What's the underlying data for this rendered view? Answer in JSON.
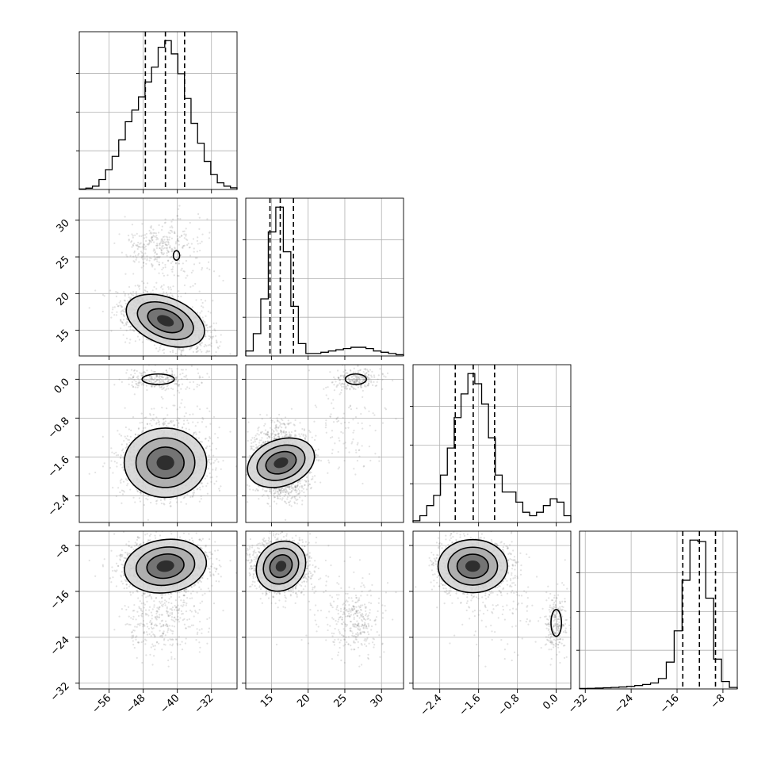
{
  "chart_data": {
    "type": "corner",
    "grid": true,
    "parameters": [
      {
        "index": 0,
        "range": [
          -63,
          -26
        ],
        "ticks": [
          -56,
          -48,
          -40,
          -32
        ],
        "tick_labels": [
          "−56",
          "−48",
          "−40",
          "−32"
        ],
        "quantiles": [
          -47.5,
          -42.8,
          -38.3
        ],
        "histogram": [
          0.3,
          0.8,
          2,
          6,
          12,
          20,
          30,
          41,
          48,
          56,
          65,
          74,
          86,
          90,
          82,
          70,
          55,
          40,
          28,
          17,
          9,
          4,
          2,
          1
        ]
      },
      {
        "index": 1,
        "range": [
          11.5,
          33
        ],
        "ticks": [
          15,
          20,
          25,
          30
        ],
        "tick_labels": [
          "15",
          "20",
          "25",
          "30"
        ],
        "quantiles": [
          14.8,
          16.2,
          18.0
        ],
        "histogram": [
          2,
          9,
          23,
          50,
          60,
          42,
          20,
          5,
          1,
          1,
          1.5,
          2,
          2.5,
          3,
          3.5,
          3.5,
          3,
          2,
          1.5,
          1,
          0.5
        ]
      },
      {
        "index": 2,
        "range": [
          -2.95,
          0.3
        ],
        "ticks": [
          -2.4,
          -1.6,
          -0.8,
          0.0
        ],
        "tick_labels": [
          "−2.4",
          "−1.6",
          "−0.8",
          "0.0"
        ],
        "quantiles": [
          -2.08,
          -1.71,
          -1.27
        ],
        "histogram": [
          0.5,
          2,
          5,
          8,
          14,
          22,
          31,
          38,
          44,
          41,
          35,
          25,
          14,
          9,
          9,
          6,
          3,
          2,
          3,
          5,
          7,
          6,
          2
        ]
      },
      {
        "index": 3,
        "range": [
          -33,
          -5.5
        ],
        "ticks": [
          -32,
          -24,
          -16,
          -8
        ],
        "tick_labels": [
          "−32",
          "−24",
          "−16",
          "−8"
        ],
        "quantiles": [
          -15.0,
          -12.1,
          -9.3
        ],
        "histogram": [
          0.3,
          0.4,
          0.6,
          0.8,
          1.0,
          1.3,
          1.7,
          2.3,
          3,
          4,
          7,
          18,
          39,
          73,
          100,
          99,
          61,
          20,
          5,
          1
        ]
      }
    ]
  }
}
